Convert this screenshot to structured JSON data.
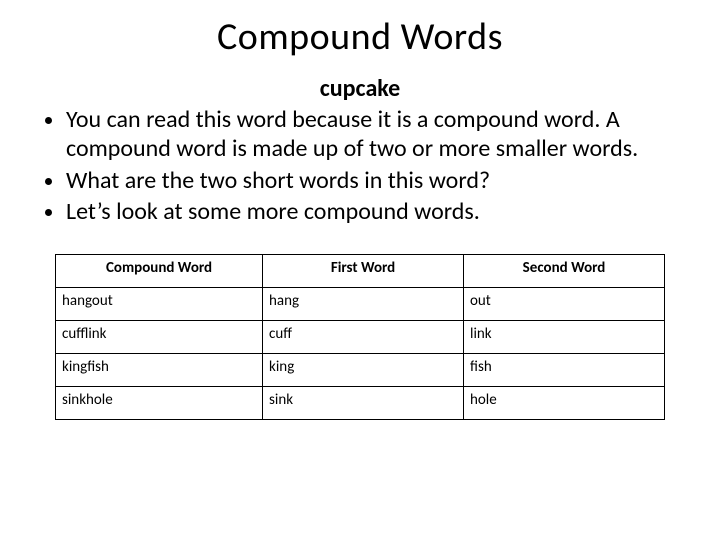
{
  "title": "Compound Words",
  "example_word": "cupcake",
  "bullets": [
    "You can read this word because it is a compound word. A compound word is made up of two or more smaller words.",
    "What are the two short words in this word?",
    "Let’s look at some more compound words."
  ],
  "table": {
    "columns": [
      "Compound Word",
      "First Word",
      "Second Word"
    ],
    "rows": [
      [
        "hangout",
        "hang",
        "out"
      ],
      [
        "cufflink",
        "cuff",
        "link"
      ],
      [
        "kingfish",
        "king",
        "fish"
      ],
      [
        "sinkhole",
        "sink",
        "hole"
      ]
    ],
    "border_color": "#000000",
    "header_fontsize": 15,
    "cell_fontsize": 15,
    "column_widths_pct": [
      34,
      33,
      33
    ]
  },
  "title_fontsize": 38,
  "example_fontsize": 24,
  "bullet_fontsize": 24,
  "background_color": "#ffffff",
  "text_color": "#000000"
}
